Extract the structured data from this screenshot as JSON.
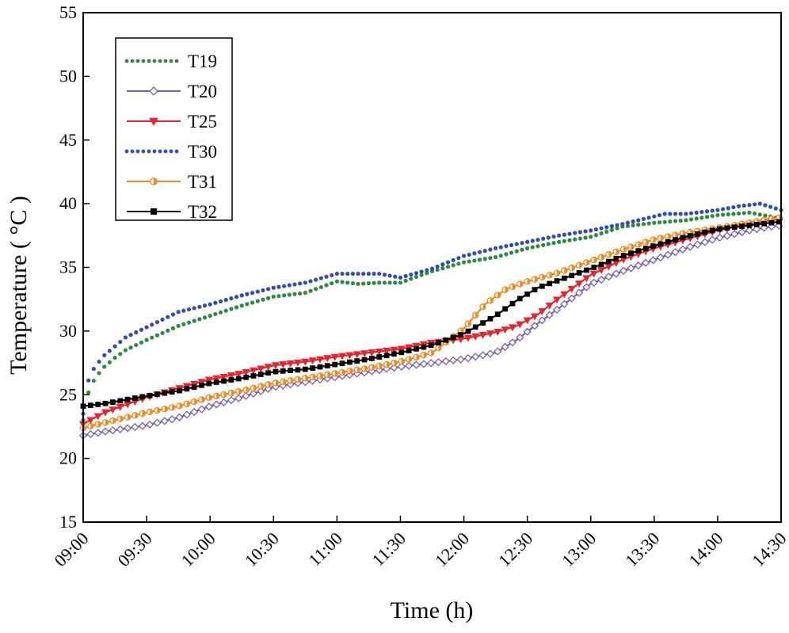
{
  "chart_data": {
    "type": "line",
    "title": "",
    "xlabel": "Time (h)",
    "ylabel": "Temperature ( °C )",
    "xlim": [
      0,
      330
    ],
    "ylim": [
      15,
      55
    ],
    "xticks": [
      0,
      30,
      60,
      90,
      120,
      150,
      180,
      210,
      240,
      270,
      300,
      330
    ],
    "xtick_labels": [
      "09:00",
      "09:30",
      "10:00",
      "10:30",
      "11:00",
      "11:30",
      "12:00",
      "12:30",
      "13:00",
      "13:30",
      "14:00",
      "14:30"
    ],
    "yticks": [
      15,
      20,
      25,
      30,
      35,
      40,
      45,
      50,
      55
    ],
    "ytick_labels": [
      "15",
      "20",
      "25",
      "30",
      "35",
      "40",
      "45",
      "50",
      "55"
    ],
    "legend_position": "top-left",
    "series": [
      {
        "name": "T19",
        "color": "#2e8b3e",
        "style": "dotted",
        "marker": "none",
        "x": [
          0,
          1,
          3,
          6,
          10,
          15,
          20,
          30,
          45,
          60,
          75,
          90,
          105,
          120,
          130,
          140,
          150,
          165,
          180,
          195,
          210,
          225,
          240,
          255,
          270,
          285,
          300,
          315,
          325,
          330
        ],
        "y": [
          23.0,
          24.2,
          25.5,
          26.4,
          27.2,
          27.9,
          28.5,
          29.3,
          30.4,
          31.2,
          32.0,
          32.7,
          33.0,
          33.9,
          33.7,
          33.8,
          33.8,
          34.7,
          35.4,
          35.8,
          36.5,
          37.0,
          37.4,
          38.2,
          38.5,
          38.7,
          39.1,
          39.3,
          39.0,
          38.8
        ]
      },
      {
        "name": "T20",
        "color": "#7b5fb0",
        "style": "solid",
        "marker": "diamond",
        "x": [
          0,
          10,
          30,
          45,
          60,
          75,
          90,
          105,
          120,
          135,
          150,
          165,
          180,
          195,
          205,
          215,
          225,
          240,
          255,
          270,
          285,
          300,
          315,
          325,
          330
        ],
        "y": [
          21.8,
          22.1,
          22.6,
          23.2,
          24.1,
          24.8,
          25.6,
          26.0,
          26.4,
          26.8,
          27.2,
          27.5,
          27.8,
          28.3,
          29.3,
          30.6,
          31.8,
          33.7,
          34.7,
          35.6,
          36.5,
          37.3,
          37.9,
          38.2,
          38.3
        ]
      },
      {
        "name": "T25",
        "color": "#e8242c",
        "style": "solid",
        "marker": "triangle-down",
        "x": [
          0,
          10,
          30,
          45,
          60,
          75,
          90,
          105,
          120,
          135,
          150,
          165,
          180,
          195,
          205,
          215,
          225,
          240,
          255,
          270,
          285,
          300,
          315,
          325,
          330
        ],
        "y": [
          22.7,
          23.6,
          24.8,
          25.5,
          26.2,
          26.7,
          27.3,
          27.6,
          28.0,
          28.3,
          28.6,
          29.1,
          29.4,
          29.9,
          30.4,
          31.3,
          32.6,
          34.4,
          35.6,
          36.5,
          37.2,
          37.9,
          38.4,
          38.7,
          38.8
        ]
      },
      {
        "name": "T30",
        "color": "#2f4eb0",
        "style": "dotted",
        "marker": "none",
        "x": [
          0,
          1,
          3,
          6,
          10,
          15,
          20,
          30,
          45,
          60,
          75,
          90,
          105,
          120,
          130,
          140,
          150,
          165,
          180,
          195,
          210,
          225,
          240,
          255,
          270,
          275,
          285,
          300,
          310,
          320,
          330
        ],
        "y": [
          23.5,
          25.0,
          26.5,
          27.3,
          28.1,
          28.8,
          29.5,
          30.3,
          31.5,
          32.1,
          32.8,
          33.4,
          33.8,
          34.5,
          34.5,
          34.5,
          34.2,
          34.9,
          35.9,
          36.5,
          37.0,
          37.5,
          37.9,
          38.4,
          39.0,
          39.2,
          39.2,
          39.5,
          39.8,
          40.0,
          39.5
        ]
      },
      {
        "name": "T31",
        "color": "#f08a20",
        "style": "solid",
        "marker": "half-circle",
        "x": [
          0,
          10,
          30,
          45,
          60,
          75,
          90,
          105,
          120,
          135,
          150,
          165,
          180,
          190,
          200,
          210,
          225,
          240,
          255,
          270,
          285,
          300,
          315,
          325,
          330
        ],
        "y": [
          22.4,
          22.8,
          23.6,
          24.1,
          24.8,
          25.3,
          25.9,
          26.3,
          26.7,
          27.1,
          27.6,
          28.3,
          30.2,
          32.1,
          33.3,
          33.9,
          34.6,
          35.5,
          36.4,
          37.2,
          37.7,
          38.1,
          38.5,
          38.8,
          38.9
        ]
      },
      {
        "name": "T32",
        "color": "#000000",
        "style": "solid",
        "marker": "square",
        "x": [
          0,
          10,
          30,
          45,
          60,
          75,
          90,
          105,
          120,
          135,
          150,
          165,
          180,
          195,
          205,
          215,
          225,
          240,
          255,
          270,
          285,
          300,
          315,
          325,
          330
        ],
        "y": [
          24.1,
          24.3,
          24.9,
          25.3,
          25.9,
          26.3,
          26.8,
          27.0,
          27.4,
          27.8,
          28.3,
          28.9,
          29.8,
          31.2,
          32.4,
          33.4,
          34.0,
          34.9,
          35.9,
          36.7,
          37.4,
          38.0,
          38.3,
          38.5,
          38.6
        ]
      }
    ]
  }
}
